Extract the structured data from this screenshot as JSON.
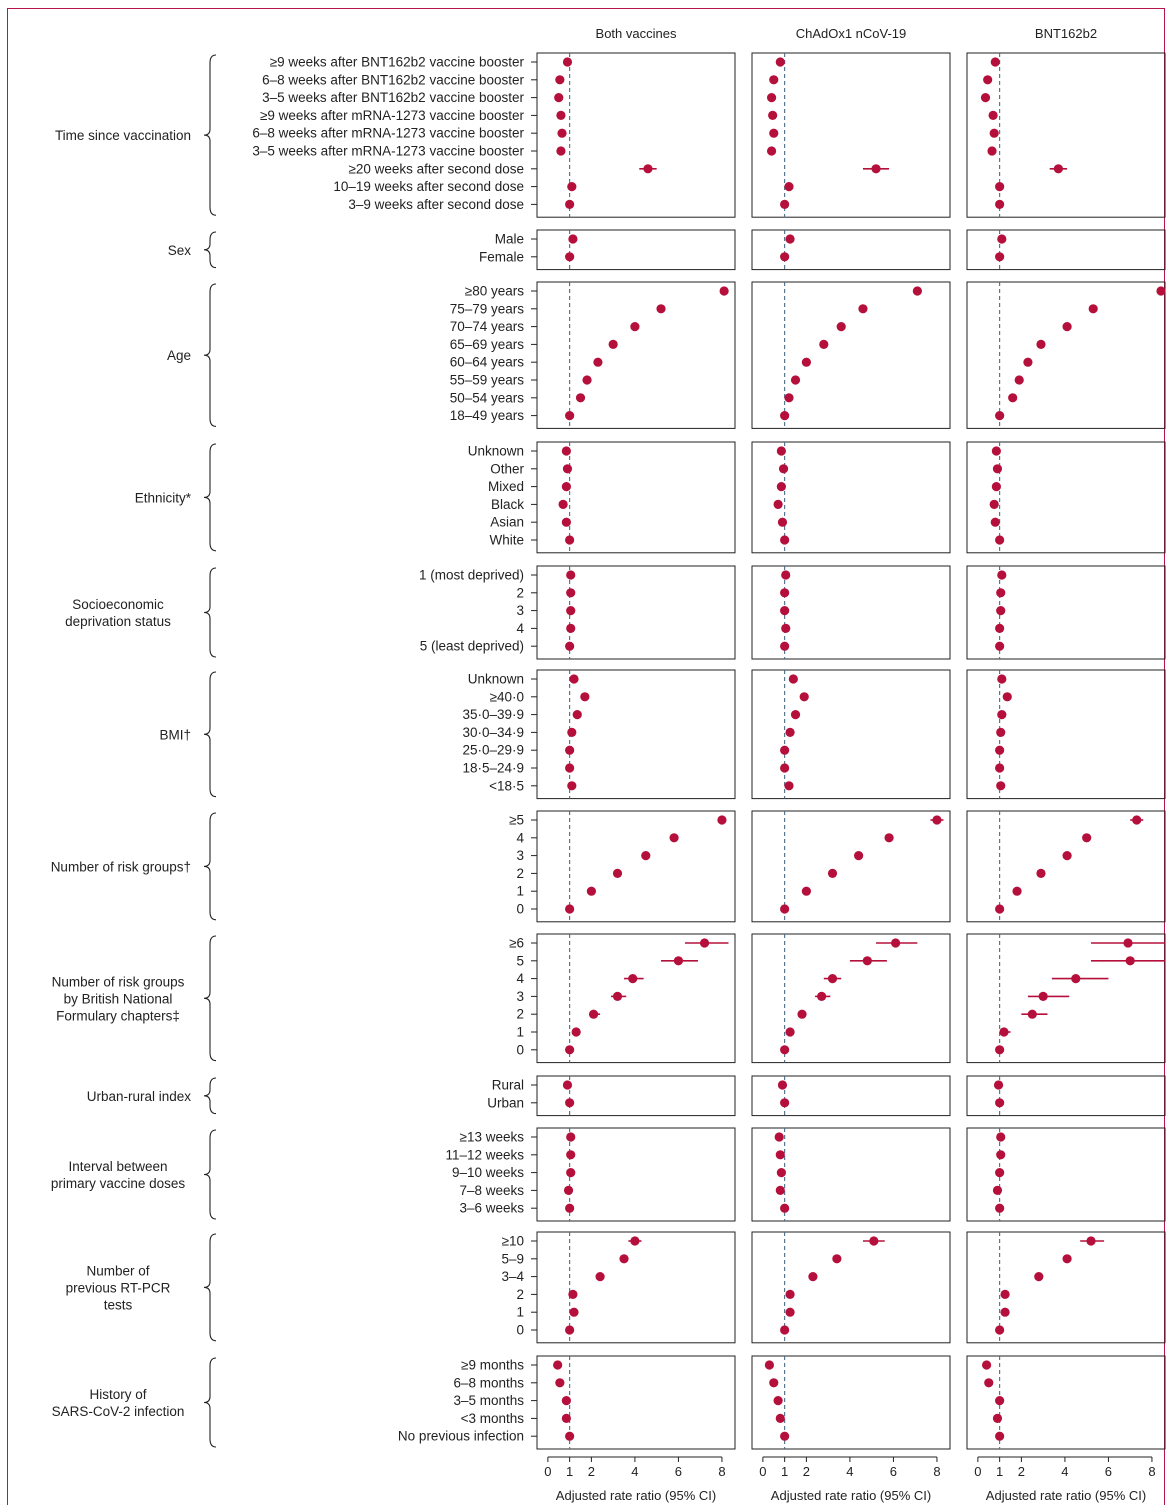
{
  "chart_data": {
    "type": "forest",
    "panels": [
      "Both vaccines",
      "ChAdOx1 nCoV-19",
      "BNT162b2"
    ],
    "xlabel": "Adjusted rate ratio (95% CI)",
    "xlim": [
      -0.5,
      8.6
    ],
    "xticks": [
      0,
      1,
      2,
      4,
      6,
      8
    ],
    "reference_line": 1,
    "colors": {
      "marker": "#b5103c",
      "reference": "#4a6b86",
      "frame": "#222222",
      "border": "#b5174b"
    },
    "groups": [
      {
        "label": "Time since vaccination",
        "rows": [
          {
            "label": "≥9 weeks after BNT162b2 vaccine booster",
            "est": [
              0.9,
              0.8,
              0.8
            ]
          },
          {
            "label": "6–8 weeks after BNT162b2 vaccine booster",
            "est": [
              0.55,
              0.5,
              0.45
            ]
          },
          {
            "label": "3–5 weeks after BNT162b2 vaccine booster",
            "est": [
              0.5,
              0.4,
              0.35
            ]
          },
          {
            "label": "≥9 weeks after mRNA-1273 vaccine booster",
            "est": [
              0.6,
              0.45,
              0.7
            ]
          },
          {
            "label": "6–8 weeks after mRNA-1273 vaccine booster",
            "est": [
              0.65,
              0.5,
              0.75
            ]
          },
          {
            "label": "3–5 weeks after mRNA-1273 vaccine booster",
            "est": [
              0.6,
              0.4,
              0.65
            ]
          },
          {
            "label": "≥20 weeks after second dose",
            "est": [
              4.6,
              5.2,
              3.7
            ],
            "lo": [
              4.2,
              4.6,
              3.3
            ],
            "hi": [
              5.0,
              5.8,
              4.1
            ]
          },
          {
            "label": "10–19 weeks after second dose",
            "est": [
              1.1,
              1.2,
              1.0
            ]
          },
          {
            "label": "3–9 weeks after second dose",
            "est": [
              1.0,
              1.0,
              1.0
            ]
          }
        ]
      },
      {
        "label": "Sex",
        "rows": [
          {
            "label": "Male",
            "est": [
              1.15,
              1.25,
              1.1
            ]
          },
          {
            "label": "Female",
            "est": [
              1.0,
              1.0,
              1.0
            ]
          }
        ]
      },
      {
        "label": "Age",
        "rows": [
          {
            "label": "≥80 years",
            "est": [
              8.1,
              7.1,
              8.5
            ],
            "lo": [
              8.0,
              6.9,
              8.3
            ],
            "hi": [
              8.2,
              7.3,
              8.7
            ]
          },
          {
            "label": "75–79 years",
            "est": [
              5.2,
              4.6,
              5.3
            ]
          },
          {
            "label": "70–74 years",
            "est": [
              4.0,
              3.6,
              4.1
            ]
          },
          {
            "label": "65–69 years",
            "est": [
              3.0,
              2.8,
              2.9
            ]
          },
          {
            "label": "60–64 years",
            "est": [
              2.3,
              2.0,
              2.3
            ]
          },
          {
            "label": "55–59 years",
            "est": [
              1.8,
              1.5,
              1.9
            ]
          },
          {
            "label": "50–54 years",
            "est": [
              1.5,
              1.2,
              1.6
            ]
          },
          {
            "label": "18–49 years",
            "est": [
              1.0,
              1.0,
              1.0
            ]
          }
        ]
      },
      {
        "label": "Ethnicity*",
        "rows": [
          {
            "label": "Unknown",
            "est": [
              0.85,
              0.85,
              0.85
            ]
          },
          {
            "label": "Other",
            "est": [
              0.9,
              0.95,
              0.9
            ]
          },
          {
            "label": "Mixed",
            "est": [
              0.85,
              0.85,
              0.85
            ]
          },
          {
            "label": "Black",
            "est": [
              0.7,
              0.7,
              0.75
            ]
          },
          {
            "label": "Asian",
            "est": [
              0.85,
              0.9,
              0.8
            ]
          },
          {
            "label": "White",
            "est": [
              1.0,
              1.0,
              1.0
            ]
          }
        ]
      },
      {
        "label": "Socioeconomic deprivation status",
        "rows": [
          {
            "label": "1 (most deprived)",
            "est": [
              1.05,
              1.05,
              1.1
            ]
          },
          {
            "label": "2",
            "est": [
              1.05,
              1.0,
              1.05
            ]
          },
          {
            "label": "3",
            "est": [
              1.05,
              1.0,
              1.05
            ]
          },
          {
            "label": "4",
            "est": [
              1.05,
              1.05,
              1.0
            ]
          },
          {
            "label": "5 (least deprived)",
            "est": [
              1.0,
              1.0,
              1.0
            ]
          }
        ]
      },
      {
        "label": "BMI†",
        "rows": [
          {
            "label": "Unknown",
            "est": [
              1.2,
              1.4,
              1.1
            ]
          },
          {
            "label": "≥40·0",
            "est": [
              1.7,
              1.9,
              1.35
            ]
          },
          {
            "label": "35·0–39·9",
            "est": [
              1.35,
              1.5,
              1.1
            ]
          },
          {
            "label": "30·0–34·9",
            "est": [
              1.1,
              1.25,
              1.05
            ]
          },
          {
            "label": "25·0–29·9",
            "est": [
              1.0,
              1.0,
              1.0
            ]
          },
          {
            "label": "18·5–24·9",
            "est": [
              1.0,
              1.0,
              1.0
            ]
          },
          {
            "label": "<18·5",
            "est": [
              1.1,
              1.2,
              1.05
            ]
          }
        ]
      },
      {
        "label": "Number of risk groups†",
        "rows": [
          {
            "label": "≥5",
            "est": [
              8.0,
              8.0,
              7.3
            ],
            "lo": [
              7.8,
              7.7,
              7.0
            ],
            "hi": [
              8.2,
              8.3,
              7.6
            ]
          },
          {
            "label": "4",
            "est": [
              5.8,
              5.8,
              5.0
            ]
          },
          {
            "label": "3",
            "est": [
              4.5,
              4.4,
              4.1
            ]
          },
          {
            "label": "2",
            "est": [
              3.2,
              3.2,
              2.9
            ]
          },
          {
            "label": "1",
            "est": [
              2.0,
              2.0,
              1.8
            ]
          },
          {
            "label": "0",
            "est": [
              1.0,
              1.0,
              1.0
            ]
          }
        ]
      },
      {
        "label": "Number of risk groups by British National Formulary chapters‡",
        "rows": [
          {
            "label": "≥6",
            "est": [
              7.2,
              6.1,
              6.9
            ],
            "lo": [
              6.3,
              5.2,
              5.2
            ],
            "hi": [
              8.3,
              7.1,
              8.6
            ]
          },
          {
            "label": "5",
            "est": [
              6.0,
              4.8,
              7.0
            ],
            "lo": [
              5.2,
              4.0,
              5.2
            ],
            "hi": [
              6.9,
              5.7,
              8.6
            ]
          },
          {
            "label": "4",
            "est": [
              3.9,
              3.2,
              4.5
            ],
            "lo": [
              3.5,
              2.8,
              3.4
            ],
            "hi": [
              4.4,
              3.6,
              6.0
            ]
          },
          {
            "label": "3",
            "est": [
              3.2,
              2.7,
              3.0
            ],
            "lo": [
              2.9,
              2.4,
              2.3
            ],
            "hi": [
              3.6,
              3.1,
              4.2
            ]
          },
          {
            "label": "2",
            "est": [
              2.1,
              1.8,
              2.5
            ],
            "lo": [
              1.9,
              1.6,
              2.0
            ],
            "hi": [
              2.4,
              2.0,
              3.2
            ]
          },
          {
            "label": "1",
            "est": [
              1.3,
              1.25,
              1.2
            ],
            "lo": [
              1.2,
              1.1,
              1.0
            ],
            "hi": [
              1.4,
              1.4,
              1.5
            ]
          },
          {
            "label": "0",
            "est": [
              1.0,
              1.0,
              1.0
            ]
          }
        ]
      },
      {
        "label": "Urban-rural index",
        "rows": [
          {
            "label": "Rural",
            "est": [
              0.9,
              0.9,
              0.95
            ]
          },
          {
            "label": "Urban",
            "est": [
              1.0,
              1.0,
              1.0
            ]
          }
        ]
      },
      {
        "label": "Interval between primary vaccine doses",
        "rows": [
          {
            "label": "≥13 weeks",
            "est": [
              1.05,
              0.75,
              1.05
            ]
          },
          {
            "label": "11–12 weeks",
            "est": [
              1.05,
              0.8,
              1.05
            ]
          },
          {
            "label": "9–10 weeks",
            "est": [
              1.05,
              0.85,
              1.0
            ]
          },
          {
            "label": "7–8 weeks",
            "est": [
              0.95,
              0.8,
              0.9
            ]
          },
          {
            "label": "3–6 weeks",
            "est": [
              1.0,
              1.0,
              1.0
            ]
          }
        ]
      },
      {
        "label": "Number of previous RT-PCR tests",
        "rows": [
          {
            "label": "≥10",
            "est": [
              4.0,
              5.1,
              5.2
            ],
            "lo": [
              3.7,
              4.6,
              4.7
            ],
            "hi": [
              4.3,
              5.6,
              5.8
            ]
          },
          {
            "label": "5–9",
            "est": [
              3.5,
              3.4,
              4.1
            ]
          },
          {
            "label": "3–4",
            "est": [
              2.4,
              2.3,
              2.8
            ]
          },
          {
            "label": "2",
            "est": [
              1.15,
              1.25,
              1.25
            ]
          },
          {
            "label": "1",
            "est": [
              1.2,
              1.25,
              1.25
            ]
          },
          {
            "label": "0",
            "est": [
              1.0,
              1.0,
              1.0
            ]
          }
        ]
      },
      {
        "label": "History of SARS-CoV-2 infection",
        "rows": [
          {
            "label": "≥9 months",
            "est": [
              0.45,
              0.3,
              0.4
            ]
          },
          {
            "label": "6–8 months",
            "est": [
              0.55,
              0.5,
              0.5
            ]
          },
          {
            "label": "3–5 months",
            "est": [
              0.85,
              0.7,
              1.0
            ]
          },
          {
            "label": "<3 months",
            "est": [
              0.85,
              0.8,
              0.9
            ]
          },
          {
            "label": "No previous infection",
            "est": [
              1.0,
              1.0,
              1.0
            ]
          }
        ]
      }
    ]
  }
}
